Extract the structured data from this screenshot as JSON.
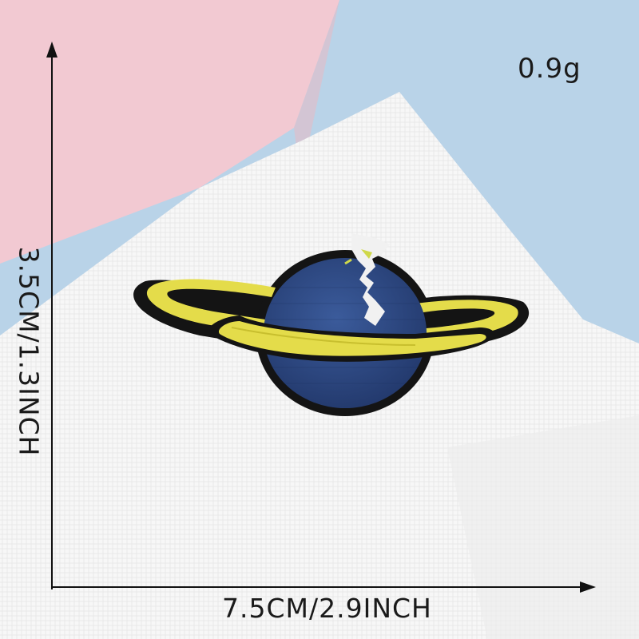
{
  "image": {
    "subject": "Embroidered planet patch",
    "labels": {
      "weight": "0.9g",
      "width": "7.5CM/2.9INCH",
      "height": "3.5CM/1.3INCH"
    },
    "colors": {
      "pink_background": "#f2c9d2",
      "blue_background": "#b9d3e8",
      "fabric_white": "#f7f7f7",
      "planet_blue": "#2e4a86",
      "ring_yellow": "#e4dc4a",
      "patch_border": "#141414"
    }
  }
}
